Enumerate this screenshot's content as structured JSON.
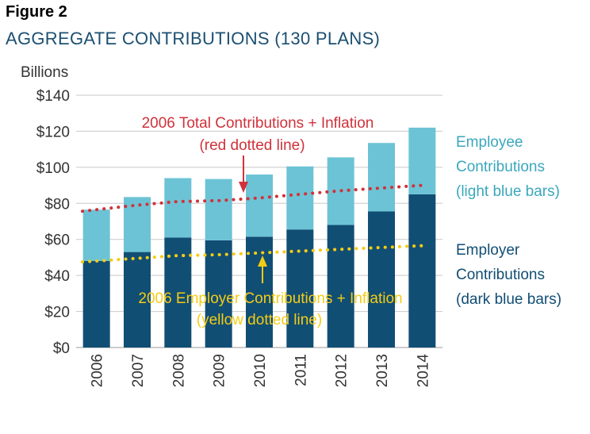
{
  "figure_label": "Figure 2",
  "figure_title": "AGGREGATE CONTRIBUTIONS (130 PLANS)",
  "colors": {
    "employer": "#114e74",
    "employee": "#6cc3d5",
    "total_inflation": "#d0323a",
    "employer_inflation": "#f5cc14",
    "title": "#1b4f72",
    "employee_legend": "#3aa7bd"
  },
  "annotations": {
    "total_line": [
      "2006 Total Contributions + Inflation",
      "(red dotted line)"
    ],
    "employer_line": [
      "2006 Employer Contributions + Inflation",
      "(yellow dotted line)"
    ]
  },
  "legend": {
    "employee": [
      "Employee",
      "Contributions",
      "(light blue bars)"
    ],
    "employer": [
      "Employer",
      "Contributions",
      "(dark blue bars)"
    ]
  },
  "chart_data": {
    "type": "bar",
    "stacked": true,
    "ylabel": "Billions",
    "ylim": [
      0,
      140
    ],
    "yticks": [
      "$0",
      "$20",
      "$40",
      "$60",
      "$80",
      "$100",
      "$120",
      "$140"
    ],
    "grid": true,
    "categories": [
      "2006",
      "2007",
      "2008",
      "2009",
      "2010",
      "2011",
      "2012",
      "2013",
      "2014"
    ],
    "series": [
      {
        "name": "Employer Contributions",
        "values": [
          48,
          53,
          61,
          59.5,
          61.5,
          65.5,
          68,
          75.5,
          85
        ]
      },
      {
        "name": "Employee Contributions",
        "values": [
          28.5,
          30.5,
          33,
          34,
          34.5,
          35,
          37.5,
          38,
          37
        ]
      }
    ],
    "lines": [
      {
        "name": "2006 Total Contributions + Inflation",
        "style": "dotted",
        "values": [
          76.5,
          79,
          81,
          81.5,
          83,
          85,
          87,
          88.5,
          90
        ]
      },
      {
        "name": "2006 Employer Contributions + Inflation",
        "style": "dotted",
        "values": [
          48,
          49.5,
          51,
          51.5,
          52.5,
          53.5,
          54.5,
          55.5,
          56.5
        ]
      }
    ]
  }
}
